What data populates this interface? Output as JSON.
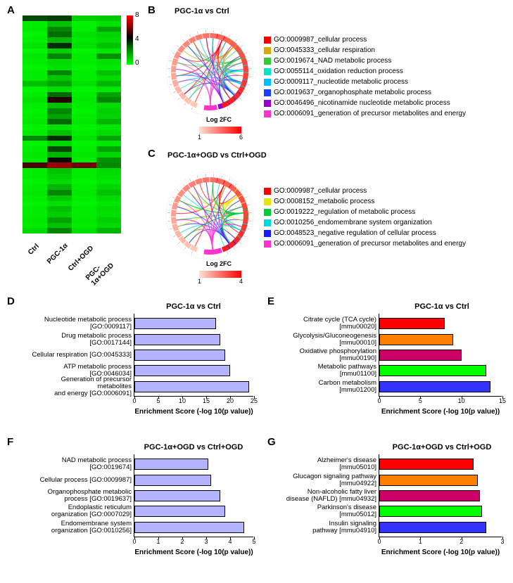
{
  "panels": {
    "A": {
      "label": "A"
    },
    "B": {
      "label": "B"
    },
    "C": {
      "label": "C"
    },
    "D": {
      "label": "D"
    },
    "E": {
      "label": "E"
    },
    "F": {
      "label": "F"
    },
    "G": {
      "label": "G"
    }
  },
  "heatmap": {
    "columns": [
      "Ctrl",
      "PGC-1α",
      "Ctrl+OGD",
      "PGC-1α+OGD"
    ],
    "colorbar": {
      "ticks": [
        "0",
        "4",
        "8"
      ]
    },
    "rows": 40,
    "data": [
      [
        3.0,
        3.2,
        0.8,
        0.9
      ],
      [
        0.3,
        1.0,
        0.2,
        0.5
      ],
      [
        0.4,
        2.0,
        0.3,
        1.5
      ],
      [
        0.2,
        2.4,
        0.5,
        0.7
      ],
      [
        0.3,
        1.2,
        0.4,
        0.6
      ],
      [
        0.5,
        3.5,
        0.5,
        1.0
      ],
      [
        0.2,
        0.8,
        0.2,
        0.4
      ],
      [
        0.4,
        2.0,
        0.3,
        1.8
      ],
      [
        0.3,
        0.6,
        0.3,
        0.5
      ],
      [
        0.2,
        0.5,
        0.2,
        0.4
      ],
      [
        0.3,
        2.0,
        0.3,
        1.0
      ],
      [
        0.3,
        0.9,
        0.3,
        0.6
      ],
      [
        1.0,
        1.5,
        0.5,
        1.2
      ],
      [
        0.2,
        0.6,
        0.2,
        0.4
      ],
      [
        0.3,
        2.5,
        0.3,
        1.5
      ],
      [
        0.5,
        4.5,
        0.4,
        2.0
      ],
      [
        0.3,
        1.0,
        0.3,
        0.6
      ],
      [
        0.2,
        2.0,
        0.2,
        0.8
      ],
      [
        0.3,
        1.5,
        0.3,
        0.7
      ],
      [
        0.4,
        2.5,
        0.4,
        1.2
      ],
      [
        0.2,
        0.5,
        0.2,
        0.4
      ],
      [
        0.3,
        1.0,
        0.3,
        0.6
      ],
      [
        2.0,
        3.5,
        0.5,
        1.5
      ],
      [
        0.2,
        0.7,
        0.2,
        0.4
      ],
      [
        0.3,
        3.0,
        0.3,
        1.5
      ],
      [
        0.4,
        1.2,
        0.4,
        0.7
      ],
      [
        0.3,
        4.0,
        0.3,
        1.8
      ],
      [
        5.0,
        6.0,
        5.5,
        2.0
      ],
      [
        0.3,
        1.0,
        0.3,
        0.6
      ],
      [
        0.3,
        0.8,
        0.3,
        0.5
      ],
      [
        0.2,
        0.6,
        0.2,
        0.4
      ],
      [
        0.3,
        1.2,
        0.3,
        0.7
      ],
      [
        0.4,
        2.0,
        0.4,
        1.0
      ],
      [
        0.3,
        0.9,
        0.3,
        0.6
      ],
      [
        0.2,
        0.5,
        0.2,
        0.4
      ],
      [
        0.3,
        1.0,
        0.3,
        0.6
      ],
      [
        0.3,
        0.8,
        0.3,
        0.5
      ],
      [
        0.4,
        1.5,
        0.4,
        0.8
      ],
      [
        0.3,
        1.0,
        0.3,
        0.6
      ],
      [
        0.6,
        2.0,
        0.5,
        1.2
      ]
    ]
  },
  "chord_B": {
    "title": "PGC-1α vs Ctrl",
    "log2fc_label": "Log 2FC",
    "log2fc_range": [
      "1",
      "6"
    ],
    "terms": [
      {
        "color": "#ff0000",
        "label": "GO:0009987_cellular process"
      },
      {
        "color": "#d9a700",
        "label": "GO:0045333_cellular respiration"
      },
      {
        "color": "#33cc33",
        "label": "GO:0019674_NAD metabolic process"
      },
      {
        "color": "#00e5cc",
        "label": "GO:0055114_oxidation reduction process"
      },
      {
        "color": "#00bfff",
        "label": "GO:0009117_nucleotide metabolic process"
      },
      {
        "color": "#1a3cff",
        "label": "GO:0019637_organophosphate metabolic process"
      },
      {
        "color": "#9900cc",
        "label": "GO:0046496_nicotinamide nucleotide metabolic process"
      },
      {
        "color": "#ff33cc",
        "label": "GO:0006091_generation of precursor metabolites and energy"
      }
    ]
  },
  "chord_C": {
    "title": "PGC-1α+OGD vs Ctrl+OGD",
    "log2fc_label": "Log 2FC",
    "log2fc_range": [
      "1",
      "4"
    ],
    "terms": [
      {
        "color": "#ff0000",
        "label": "GO:0009987_cellular process"
      },
      {
        "color": "#e6e600",
        "label": "GO:0008152_metabolic process"
      },
      {
        "color": "#00cc33",
        "label": "GO:0019222_regulation of metabolic process"
      },
      {
        "color": "#00d9d9",
        "label": "GO:0010256_endomembrane system organization"
      },
      {
        "color": "#1a1aff",
        "label": "GO:0048523_negative regulation of cellular process"
      },
      {
        "color": "#ff33cc",
        "label": "GO:0006091_generation of precursor metabolites and energy"
      }
    ]
  },
  "bar_D": {
    "title": "PGC-1α vs Ctrl",
    "xlabel": "Enrichment Score (-log 10(p value))",
    "xmax": 25,
    "ticks": [
      0,
      5,
      10,
      15,
      20,
      25
    ],
    "bars": [
      {
        "label": [
          "Nucleotide metabolic process",
          "[GO:0009117]"
        ],
        "value": 17,
        "color": "#b3b3ff"
      },
      {
        "label": [
          "Drug metabolic process",
          "[GO:0017144]"
        ],
        "value": 18,
        "color": "#b3b3ff"
      },
      {
        "label": [
          "Cellular respiration [GO:0045333]"
        ],
        "value": 19,
        "color": "#b3b3ff"
      },
      {
        "label": [
          "ATP metabolic process",
          "[GO:0046034]"
        ],
        "value": 20,
        "color": "#b3b3ff"
      },
      {
        "label": [
          "Generation of precursor metabolites",
          "and energy [GO:0006091]"
        ],
        "value": 24,
        "color": "#b3b3ff"
      }
    ]
  },
  "bar_E": {
    "title": "PGC-1α vs Ctrl",
    "xlabel": "Enrichment Score (-log 10(p value))",
    "xmax": 15,
    "ticks": [
      0,
      5,
      10,
      15
    ],
    "bars": [
      {
        "label": [
          "Citrate cycle (TCA cycle)",
          "[mmu00020]"
        ],
        "value": 8,
        "color": "#ff0000"
      },
      {
        "label": [
          "Glycolysis/Gluconeogenesis",
          "[mmu00010]"
        ],
        "value": 9,
        "color": "#ff8000"
      },
      {
        "label": [
          "Oxidative phosphorylation",
          "[mmu00190]"
        ],
        "value": 10,
        "color": "#cc0066"
      },
      {
        "label": [
          "Metabolic pathways",
          "[mmu01100]"
        ],
        "value": 13,
        "color": "#00ff00"
      },
      {
        "label": [
          "Carbon metabolism",
          "[mmu01200]"
        ],
        "value": 13.5,
        "color": "#3333ff"
      }
    ]
  },
  "bar_F": {
    "title": "PGC-1α+OGD vs Ctrl+OGD",
    "xlabel": "Enrichment Score (-log 10(p value))",
    "xmax": 5,
    "ticks": [
      0,
      1,
      2,
      3,
      4,
      5
    ],
    "bars": [
      {
        "label": [
          "NAD metabolic process",
          "[GO:0019674]"
        ],
        "value": 3.1,
        "color": "#b3b3ff"
      },
      {
        "label": [
          "Cellular process [GO:0009987]"
        ],
        "value": 3.2,
        "color": "#b3b3ff"
      },
      {
        "label": [
          "Organophosphate metabolic",
          "process [GO:0019637]"
        ],
        "value": 3.6,
        "color": "#b3b3ff"
      },
      {
        "label": [
          "Endoplastic reticulum",
          "organization [GO:0007029]"
        ],
        "value": 3.8,
        "color": "#b3b3ff"
      },
      {
        "label": [
          "Endomembrane system",
          "organization [GO:0010256]"
        ],
        "value": 4.6,
        "color": "#b3b3ff"
      }
    ]
  },
  "bar_G": {
    "title": "PGC-1α+OGD vs Ctrl+OGD",
    "xlabel": "Enrichment Score (-log 10(p value))",
    "xmax": 3,
    "ticks": [
      0,
      1,
      2,
      3
    ],
    "bars": [
      {
        "label": [
          "Alzheimer's disease",
          "[mmu05010]"
        ],
        "value": 2.3,
        "color": "#ff0000"
      },
      {
        "label": [
          "Glucagon signaling pathway",
          "[mmu04922]"
        ],
        "value": 2.4,
        "color": "#ff8000"
      },
      {
        "label": [
          "Non-alcoholic fatty liver",
          "disease (NAFLD) [mmu04932]"
        ],
        "value": 2.45,
        "color": "#cc0066"
      },
      {
        "label": [
          "Parkinson's disease",
          "[mmu05012]"
        ],
        "value": 2.5,
        "color": "#00ff00"
      },
      {
        "label": [
          "Insulin signaling",
          "pathway [mmu04910]"
        ],
        "value": 2.6,
        "color": "#3333ff"
      }
    ]
  }
}
